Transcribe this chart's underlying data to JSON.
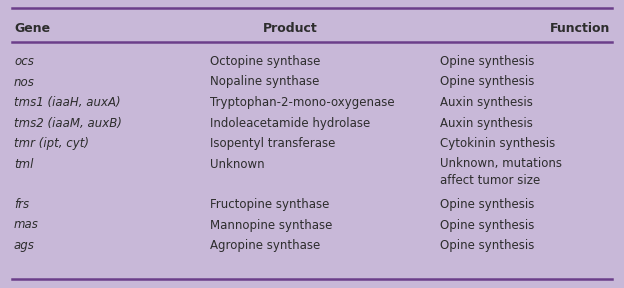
{
  "background_color": "#c8b8d8",
  "line_color": "#6b3e8a",
  "text_color": "#2d2d2d",
  "headers": [
    "Gene",
    "Product",
    "Function"
  ],
  "rows": [
    {
      "gene": "ocs",
      "product": "Octopine synthase",
      "function": "Opine synthesis",
      "gap_after": false
    },
    {
      "gene": "nos",
      "product": "Nopaline synthase",
      "function": "Opine synthesis",
      "gap_after": false
    },
    {
      "gene": "tms1 (iaaH, auxA)",
      "product": "Tryptophan-2-mono-oxygenase",
      "function": "Auxin synthesis",
      "gap_after": false
    },
    {
      "gene": "tms2 (iaaM, auxB)",
      "product": "Indoleacetamide hydrolase",
      "function": "Auxin synthesis",
      "gap_after": false
    },
    {
      "gene": "tmr (ipt, cyt)",
      "product": "Isopentyl transferase",
      "function": "Cytokinin synthesis",
      "gap_after": false
    },
    {
      "gene": "tml",
      "product": "Unknown",
      "function": "Unknown, mutations\naffect tumor size",
      "gap_after": true
    },
    {
      "gene": "frs",
      "product": "Fructopine synthase",
      "function": "Opine synthesis",
      "gap_after": false
    },
    {
      "gene": "mas",
      "product": "Mannopine synthase",
      "function": "Opine synthesis",
      "gap_after": false
    },
    {
      "gene": "ags",
      "product": "Agropine synthase",
      "function": "Opine synthesis",
      "gap_after": false
    }
  ],
  "figsize": [
    6.24,
    2.88
  ],
  "dpi": 100
}
